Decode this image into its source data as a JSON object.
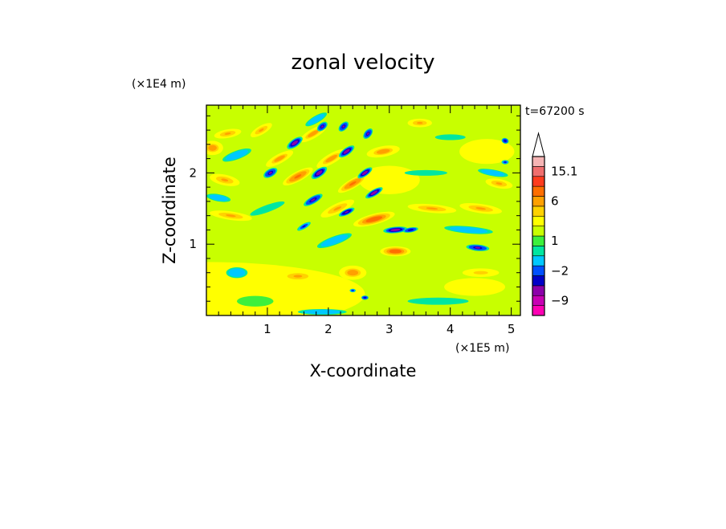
{
  "chart_data": {
    "type": "heatmap",
    "title": "zonal velocity",
    "xlabel": "X-coordinate",
    "ylabel": "Z-coordinate",
    "x_unit": "(×1E5 m)",
    "y_unit": "(×1E4 m)",
    "time_label": "t=67200 s",
    "xlim": [
      0,
      5.15
    ],
    "ylim": [
      0,
      2.95
    ],
    "x_ticks": [
      {
        "value": 1,
        "label": "1"
      },
      {
        "value": 2,
        "label": "2"
      },
      {
        "value": 3,
        "label": "3"
      },
      {
        "value": 4,
        "label": "4"
      },
      {
        "value": 5,
        "label": "5"
      }
    ],
    "y_ticks": [
      {
        "value": 1,
        "label": "1"
      },
      {
        "value": 2,
        "label": "2"
      }
    ],
    "colorbar": {
      "levels": [
        "<-15",
        "-12",
        "-9",
        "-6",
        "-4",
        "-2",
        "-1",
        "0",
        "1",
        "2",
        "3",
        "4",
        "6",
        "9",
        "12",
        "15.1",
        ">15.1"
      ],
      "colors": [
        "#ff00b4",
        "#c800b4",
        "#8c00aa",
        "#0000c8",
        "#0050ff",
        "#00c8ff",
        "#00e6a0",
        "#3cf03c",
        "#c8ff00",
        "#ffff00",
        "#ffd200",
        "#ffa000",
        "#ff6e00",
        "#ff3c1e",
        "#f06e6e",
        "#f5b4b4",
        "#ffffff"
      ],
      "labels": [
        {
          "level": "15.1",
          "text": "15.1"
        },
        {
          "level": "6",
          "text": "6"
        },
        {
          "level": "1",
          "text": "1"
        },
        {
          "level": "-2",
          "text": "−2"
        },
        {
          "level": "-9",
          "text": "−9"
        }
      ]
    },
    "features": [
      {
        "x": 0.0,
        "z": 0.3,
        "sx": 5.2,
        "sz": 0.9,
        "angle": 0,
        "v": 2.0
      },
      {
        "x": 1.6,
        "z": 1.0,
        "sx": 1.6,
        "sz": 0.55,
        "angle": 0,
        "v": 1.7
      },
      {
        "x": 3.0,
        "z": 1.9,
        "sx": 1.0,
        "sz": 0.4,
        "angle": 0,
        "v": 2.0
      },
      {
        "x": 4.6,
        "z": 2.3,
        "sx": 0.9,
        "sz": 0.35,
        "angle": 0,
        "v": 2.1
      },
      {
        "x": 4.4,
        "z": 0.4,
        "sx": 1.0,
        "sz": 0.25,
        "angle": 0,
        "v": 2.2
      },
      {
        "x": 0.8,
        "z": 0.2,
        "sx": 0.6,
        "sz": 0.15,
        "angle": 0,
        "v": 0.3
      },
      {
        "x": 0.1,
        "z": 2.35,
        "sx": 0.35,
        "sz": 0.2,
        "angle": 0,
        "v": 5.0
      },
      {
        "x": 0.35,
        "z": 2.55,
        "sx": 0.45,
        "sz": 0.12,
        "angle": -10,
        "v": 4.0
      },
      {
        "x": 0.3,
        "z": 1.9,
        "sx": 0.5,
        "sz": 0.15,
        "angle": 12,
        "v": 4.5
      },
      {
        "x": 0.9,
        "z": 2.6,
        "sx": 0.4,
        "sz": 0.12,
        "angle": -30,
        "v": 4.0
      },
      {
        "x": 1.2,
        "z": 2.2,
        "sx": 0.5,
        "sz": 0.13,
        "angle": -28,
        "v": 5.0
      },
      {
        "x": 1.5,
        "z": 1.95,
        "sx": 0.55,
        "sz": 0.14,
        "angle": -28,
        "v": 6.5
      },
      {
        "x": 1.75,
        "z": 2.55,
        "sx": 0.5,
        "sz": 0.13,
        "angle": -30,
        "v": 5.0
      },
      {
        "x": 2.05,
        "z": 2.2,
        "sx": 0.55,
        "sz": 0.14,
        "angle": -30,
        "v": 5.5
      },
      {
        "x": 2.4,
        "z": 1.85,
        "sx": 0.55,
        "sz": 0.13,
        "angle": -30,
        "v": 6.0
      },
      {
        "x": 2.15,
        "z": 1.5,
        "sx": 0.6,
        "sz": 0.14,
        "angle": -25,
        "v": 4.5
      },
      {
        "x": 2.75,
        "z": 1.35,
        "sx": 0.7,
        "sz": 0.15,
        "angle": -15,
        "v": 8.0
      },
      {
        "x": 3.1,
        "z": 0.9,
        "sx": 0.5,
        "sz": 0.14,
        "angle": 0,
        "v": 8.5
      },
      {
        "x": 2.4,
        "z": 0.6,
        "sx": 0.45,
        "sz": 0.2,
        "angle": 0,
        "v": 5.5
      },
      {
        "x": 2.9,
        "z": 2.3,
        "sx": 0.55,
        "sz": 0.15,
        "angle": -10,
        "v": 5.0
      },
      {
        "x": 3.5,
        "z": 2.7,
        "sx": 0.4,
        "sz": 0.12,
        "angle": 0,
        "v": 4.0
      },
      {
        "x": 3.7,
        "z": 1.5,
        "sx": 0.8,
        "sz": 0.12,
        "angle": 5,
        "v": 4.0
      },
      {
        "x": 4.5,
        "z": 1.5,
        "sx": 0.7,
        "sz": 0.13,
        "angle": 8,
        "v": 4.5
      },
      {
        "x": 4.8,
        "z": 1.85,
        "sx": 0.45,
        "sz": 0.13,
        "angle": 10,
        "v": 4.5
      },
      {
        "x": 4.5,
        "z": 0.6,
        "sx": 0.6,
        "sz": 0.12,
        "angle": 0,
        "v": 3.5
      },
      {
        "x": 0.4,
        "z": 1.4,
        "sx": 0.7,
        "sz": 0.12,
        "angle": 8,
        "v": 4.0
      },
      {
        "x": 1.5,
        "z": 0.55,
        "sx": 0.6,
        "sz": 0.15,
        "angle": 0,
        "v": 4.0
      },
      {
        "x": 0.5,
        "z": 2.25,
        "sx": 0.5,
        "sz": 0.12,
        "angle": -20,
        "v": -1.5
      },
      {
        "x": 0.2,
        "z": 1.65,
        "sx": 0.4,
        "sz": 0.1,
        "angle": 10,
        "v": -1.5
      },
      {
        "x": 0.5,
        "z": 0.6,
        "sx": 0.35,
        "sz": 0.15,
        "angle": 0,
        "v": -2.0
      },
      {
        "x": 1.0,
        "z": 1.5,
        "sx": 0.6,
        "sz": 0.1,
        "angle": -20,
        "v": -1.0
      },
      {
        "x": 2.1,
        "z": 1.05,
        "sx": 0.6,
        "sz": 0.12,
        "angle": -20,
        "v": -2.0
      },
      {
        "x": 3.6,
        "z": 2.0,
        "sx": 0.7,
        "sz": 0.08,
        "angle": 0,
        "v": -1.0
      },
      {
        "x": 4.3,
        "z": 1.2,
        "sx": 0.8,
        "sz": 0.1,
        "angle": 5,
        "v": -1.5
      },
      {
        "x": 4.7,
        "z": 2.0,
        "sx": 0.5,
        "sz": 0.09,
        "angle": 10,
        "v": -1.5
      },
      {
        "x": 3.8,
        "z": 0.2,
        "sx": 1.0,
        "sz": 0.1,
        "angle": 0,
        "v": -1.0
      },
      {
        "x": 1.9,
        "z": 0.05,
        "sx": 0.8,
        "sz": 0.08,
        "angle": 0,
        "v": -1.5
      },
      {
        "x": 1.8,
        "z": 2.75,
        "sx": 0.4,
        "sz": 0.1,
        "angle": -30,
        "v": -2.0
      },
      {
        "x": 4.0,
        "z": 2.5,
        "sx": 0.5,
        "sz": 0.08,
        "angle": 0,
        "v": -1.0
      },
      {
        "x": 1.05,
        "z": 2.0,
        "sx": 0.25,
        "sz": 0.11,
        "angle": -30,
        "v": -7.0
      },
      {
        "x": 1.45,
        "z": 2.42,
        "sx": 0.3,
        "sz": 0.11,
        "angle": -35,
        "v": -8.0
      },
      {
        "x": 1.85,
        "z": 2.0,
        "sx": 0.3,
        "sz": 0.11,
        "angle": -35,
        "v": -8.0
      },
      {
        "x": 1.75,
        "z": 1.62,
        "sx": 0.35,
        "sz": 0.1,
        "angle": -30,
        "v": -7.0
      },
      {
        "x": 1.6,
        "z": 1.25,
        "sx": 0.25,
        "sz": 0.07,
        "angle": -30,
        "v": -5.0
      },
      {
        "x": 1.9,
        "z": 2.65,
        "sx": 0.2,
        "sz": 0.1,
        "angle": -40,
        "v": -7.0
      },
      {
        "x": 2.25,
        "z": 2.65,
        "sx": 0.2,
        "sz": 0.1,
        "angle": -45,
        "v": -7.0
      },
      {
        "x": 2.3,
        "z": 2.3,
        "sx": 0.3,
        "sz": 0.1,
        "angle": -35,
        "v": -9.0
      },
      {
        "x": 2.6,
        "z": 2.0,
        "sx": 0.28,
        "sz": 0.09,
        "angle": -35,
        "v": -8.0
      },
      {
        "x": 2.65,
        "z": 2.55,
        "sx": 0.2,
        "sz": 0.1,
        "angle": -50,
        "v": -7.0
      },
      {
        "x": 2.75,
        "z": 1.72,
        "sx": 0.32,
        "sz": 0.09,
        "angle": -30,
        "v": -9.0
      },
      {
        "x": 2.3,
        "z": 1.45,
        "sx": 0.28,
        "sz": 0.08,
        "angle": -25,
        "v": -7.5
      },
      {
        "x": 3.1,
        "z": 1.2,
        "sx": 0.4,
        "sz": 0.09,
        "angle": -5,
        "v": -8.5
      },
      {
        "x": 3.35,
        "z": 1.2,
        "sx": 0.25,
        "sz": 0.07,
        "angle": -10,
        "v": -6.0
      },
      {
        "x": 4.45,
        "z": 0.95,
        "sx": 0.38,
        "sz": 0.09,
        "angle": 5,
        "v": -7.0
      },
      {
        "x": 4.9,
        "z": 2.45,
        "sx": 0.12,
        "sz": 0.08,
        "angle": 20,
        "v": -6.0
      },
      {
        "x": 4.9,
        "z": 2.15,
        "sx": 0.12,
        "sz": 0.06,
        "angle": 0,
        "v": -5.0
      },
      {
        "x": 2.6,
        "z": 0.25,
        "sx": 0.12,
        "sz": 0.06,
        "angle": 0,
        "v": -6.0
      },
      {
        "x": 2.4,
        "z": 0.35,
        "sx": 0.1,
        "sz": 0.05,
        "angle": 0,
        "v": -5.0
      }
    ]
  }
}
